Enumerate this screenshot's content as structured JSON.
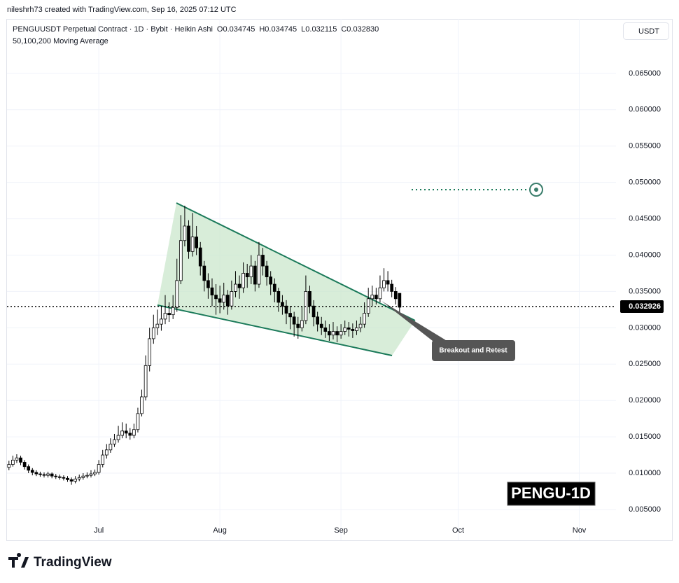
{
  "header": {
    "credit": "nileshrh73 created with TradingView.com, Sep 16, 2025 07:12 UTC",
    "logo": "TradingView"
  },
  "chart_data": {
    "type": "candlestick",
    "title": "PENGUUSDT Perpetual Contract · 1D · Bybit · Heikin Ashi",
    "ohlc_labels": [
      "O0.034745",
      "H0.034745",
      "L0.032115",
      "C0.032830"
    ],
    "subtitle": "50,100,200 Moving Average",
    "currency": "USDT",
    "watermark": "PENGU-1D",
    "annotation": "Breakout and Retest",
    "last_price": 0.032926,
    "up_color": "#ffffff",
    "down_color": "#000000",
    "grid": true,
    "xlim": [
      -0.5,
      155.4
    ],
    "xticks": [
      {
        "value": 23,
        "label": "Jul"
      },
      {
        "value": 54,
        "label": "Aug"
      },
      {
        "value": 85,
        "label": "Sep"
      },
      {
        "value": 115,
        "label": "Oct"
      },
      {
        "value": 146,
        "label": "Nov"
      }
    ],
    "ylim": [
      0.00076,
      0.0725
    ],
    "yticks": [
      {
        "value": 0.005,
        "label": "0.005000"
      },
      {
        "value": 0.01,
        "label": "0.010000"
      },
      {
        "value": 0.015,
        "label": "0.015000"
      },
      {
        "value": 0.02,
        "label": "0.020000"
      },
      {
        "value": 0.025,
        "label": "0.025000"
      },
      {
        "value": 0.03,
        "label": "0.030000"
      },
      {
        "value": 0.035,
        "label": "0.035000"
      },
      {
        "value": 0.04,
        "label": "0.040000"
      },
      {
        "value": 0.045,
        "label": "0.045000"
      },
      {
        "value": 0.05,
        "label": "0.050000"
      },
      {
        "value": 0.055,
        "label": "0.055000"
      },
      {
        "value": 0.06,
        "label": "0.060000"
      },
      {
        "value": 0.065,
        "label": "0.065000"
      }
    ],
    "x": [
      0,
      1,
      2,
      3,
      4,
      5,
      6,
      7,
      8,
      9,
      10,
      11,
      12,
      13,
      14,
      15,
      16,
      17,
      18,
      19,
      20,
      21,
      22,
      23,
      24,
      25,
      26,
      27,
      28,
      29,
      30,
      31,
      32,
      33,
      34,
      35,
      36,
      37,
      38,
      39,
      40,
      41,
      42,
      43,
      44,
      45,
      46,
      47,
      48,
      49,
      50,
      51,
      52,
      53,
      54,
      55,
      56,
      57,
      58,
      59,
      60,
      61,
      62,
      63,
      64,
      65,
      66,
      67,
      68,
      69,
      70,
      71,
      72,
      73,
      74,
      75,
      76,
      77,
      78,
      79,
      80,
      81,
      82,
      83,
      84,
      85,
      86,
      87,
      88,
      89,
      90,
      91,
      92,
      93,
      94,
      95,
      96,
      97,
      98,
      99,
      100
    ],
    "open": [
      0.0108,
      0.0112,
      0.0118,
      0.0121,
      0.0115,
      0.0109,
      0.0104,
      0.0101,
      0.0099,
      0.0098,
      0.0097,
      0.0099,
      0.0096,
      0.0095,
      0.0094,
      0.0093,
      0.0091,
      0.0089,
      0.0092,
      0.0094,
      0.0096,
      0.0097,
      0.0099,
      0.0101,
      0.0112,
      0.0125,
      0.0132,
      0.014,
      0.0146,
      0.0152,
      0.0158,
      0.0155,
      0.0152,
      0.016,
      0.0182,
      0.0205,
      0.0248,
      0.0285,
      0.03,
      0.0305,
      0.0312,
      0.032,
      0.0318,
      0.0328,
      0.0365,
      0.042,
      0.044,
      0.0405,
      0.0425,
      0.041,
      0.0385,
      0.0365,
      0.0355,
      0.0345,
      0.034,
      0.0335,
      0.0345,
      0.033,
      0.035,
      0.036,
      0.0355,
      0.0375,
      0.037,
      0.0385,
      0.036,
      0.04,
      0.0385,
      0.037,
      0.036,
      0.035,
      0.0335,
      0.033,
      0.032,
      0.0315,
      0.0305,
      0.03,
      0.031,
      0.035,
      0.033,
      0.0315,
      0.0305,
      0.03,
      0.0295,
      0.029,
      0.0295,
      0.029,
      0.0295,
      0.03,
      0.0298,
      0.0296,
      0.03,
      0.0305,
      0.032,
      0.034,
      0.0345,
      0.034,
      0.0355,
      0.0365,
      0.036,
      0.035,
      0.034745
    ],
    "high": [
      0.0117,
      0.0124,
      0.0126,
      0.0124,
      0.0118,
      0.0112,
      0.0107,
      0.0104,
      0.0102,
      0.0101,
      0.0102,
      0.0101,
      0.0099,
      0.0098,
      0.0097,
      0.0096,
      0.0094,
      0.0096,
      0.0098,
      0.01,
      0.0101,
      0.0104,
      0.0105,
      0.0118,
      0.0132,
      0.014,
      0.0148,
      0.0154,
      0.0165,
      0.017,
      0.0168,
      0.0162,
      0.0168,
      0.019,
      0.0215,
      0.0262,
      0.03,
      0.0318,
      0.0325,
      0.033,
      0.0345,
      0.0335,
      0.0345,
      0.0395,
      0.0455,
      0.0468,
      0.0448,
      0.0458,
      0.044,
      0.0418,
      0.0392,
      0.0375,
      0.0368,
      0.036,
      0.0358,
      0.0362,
      0.0352,
      0.0365,
      0.0378,
      0.0372,
      0.039,
      0.0388,
      0.04,
      0.0392,
      0.0418,
      0.041,
      0.0392,
      0.0378,
      0.0368,
      0.0355,
      0.0345,
      0.0338,
      0.033,
      0.0322,
      0.0315,
      0.033,
      0.0372,
      0.0358,
      0.0338,
      0.0322,
      0.0315,
      0.031,
      0.0305,
      0.0308,
      0.0302,
      0.0305,
      0.031,
      0.0308,
      0.0306,
      0.031,
      0.0315,
      0.0335,
      0.0355,
      0.0358,
      0.0355,
      0.0372,
      0.0382,
      0.0378,
      0.0366,
      0.0356,
      0.034745
    ],
    "low": [
      0.0104,
      0.0109,
      0.0114,
      0.0111,
      0.0105,
      0.01,
      0.0097,
      0.0096,
      0.0095,
      0.0094,
      0.0094,
      0.0093,
      0.0092,
      0.0091,
      0.009,
      0.0088,
      0.0084,
      0.0086,
      0.0089,
      0.0091,
      0.0093,
      0.0094,
      0.0096,
      0.0098,
      0.0108,
      0.012,
      0.0128,
      0.0136,
      0.0142,
      0.0148,
      0.0148,
      0.0146,
      0.0148,
      0.0156,
      0.0178,
      0.02,
      0.024,
      0.0278,
      0.029,
      0.0296,
      0.0305,
      0.0308,
      0.0312,
      0.0322,
      0.036,
      0.0412,
      0.0395,
      0.0398,
      0.04,
      0.0372,
      0.035,
      0.034,
      0.033,
      0.0318,
      0.032,
      0.0325,
      0.0318,
      0.0325,
      0.0342,
      0.034,
      0.0348,
      0.0355,
      0.036,
      0.035,
      0.0355,
      0.0372,
      0.0358,
      0.0345,
      0.0335,
      0.0322,
      0.0318,
      0.0305,
      0.0298,
      0.0288,
      0.0285,
      0.0295,
      0.0305,
      0.032,
      0.0302,
      0.0295,
      0.029,
      0.0286,
      0.0282,
      0.0284,
      0.028,
      0.0285,
      0.029,
      0.0288,
      0.0286,
      0.029,
      0.0294,
      0.03,
      0.0315,
      0.033,
      0.0332,
      0.0335,
      0.035,
      0.035,
      0.0342,
      0.0332,
      0.032115
    ],
    "close": [
      0.0112,
      0.0118,
      0.0121,
      0.0115,
      0.0109,
      0.0104,
      0.0101,
      0.0099,
      0.0098,
      0.0097,
      0.0099,
      0.0096,
      0.0095,
      0.0094,
      0.0093,
      0.0091,
      0.0089,
      0.0092,
      0.0094,
      0.0096,
      0.0097,
      0.0099,
      0.0101,
      0.0112,
      0.0125,
      0.0132,
      0.014,
      0.0146,
      0.0152,
      0.0158,
      0.0155,
      0.0152,
      0.016,
      0.0182,
      0.0205,
      0.0248,
      0.0285,
      0.03,
      0.0305,
      0.0312,
      0.032,
      0.0318,
      0.0328,
      0.0365,
      0.042,
      0.044,
      0.0405,
      0.0425,
      0.041,
      0.0385,
      0.0365,
      0.0355,
      0.0345,
      0.034,
      0.0335,
      0.0345,
      0.033,
      0.035,
      0.036,
      0.0355,
      0.0375,
      0.037,
      0.0385,
      0.036,
      0.04,
      0.0385,
      0.037,
      0.036,
      0.035,
      0.0335,
      0.033,
      0.032,
      0.0315,
      0.0305,
      0.03,
      0.031,
      0.035,
      0.033,
      0.0315,
      0.0305,
      0.03,
      0.0295,
      0.029,
      0.0295,
      0.029,
      0.0295,
      0.03,
      0.0298,
      0.0296,
      0.03,
      0.0305,
      0.032,
      0.034,
      0.0345,
      0.034,
      0.0355,
      0.0365,
      0.036,
      0.035,
      0.034,
      0.03283
    ]
  }
}
